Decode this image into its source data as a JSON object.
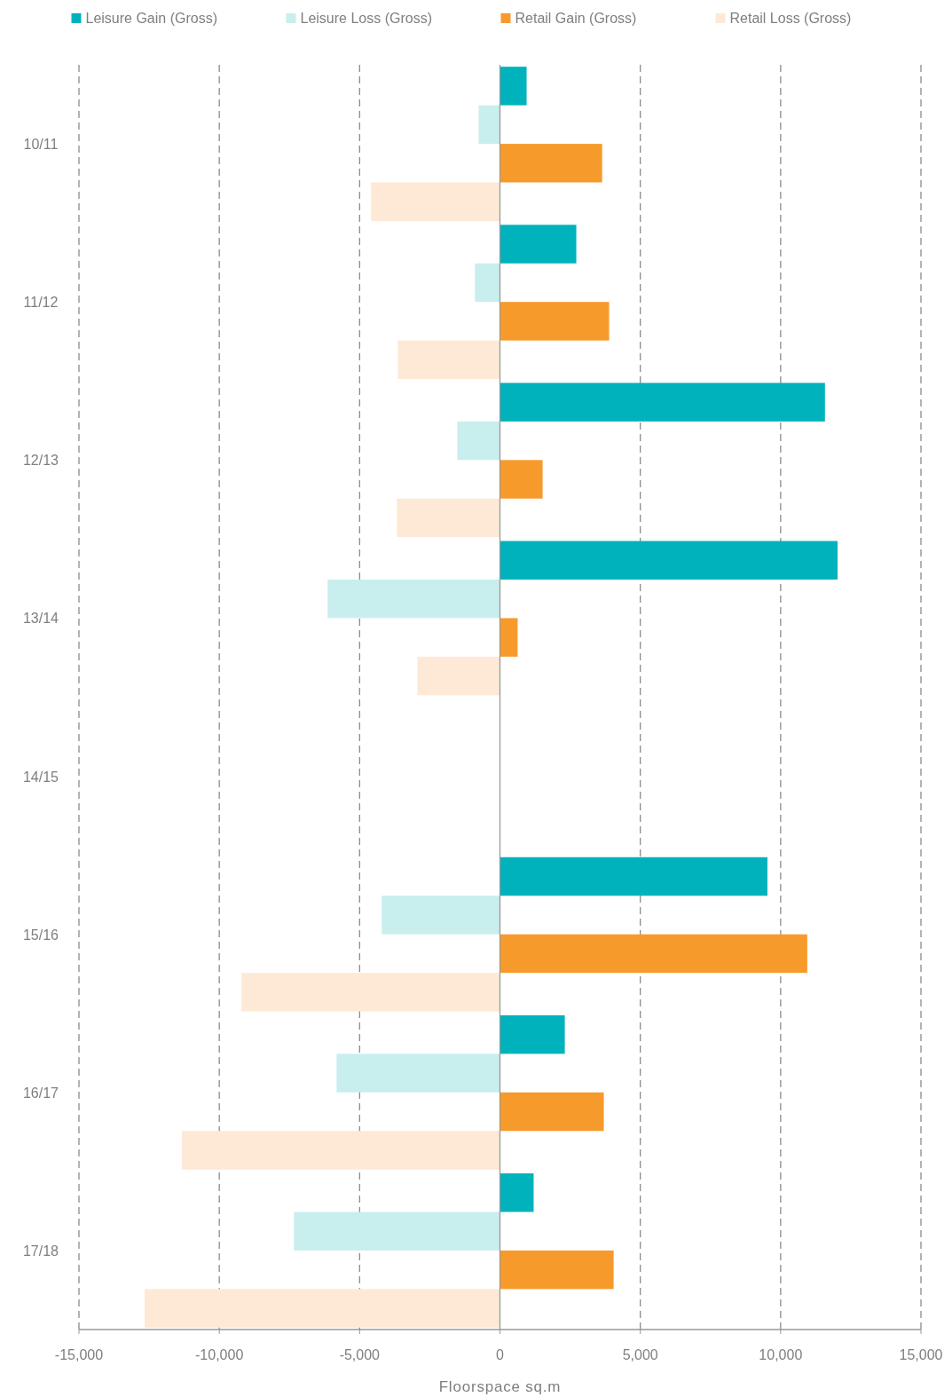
{
  "chart_data": {
    "type": "bar",
    "orientation": "horizontal",
    "xlabel": "Floorspace sq.m",
    "categories": [
      "10/11",
      "11/12",
      "12/13",
      "13/14",
      "14/15",
      "15/16",
      "16/17",
      "17/18"
    ],
    "series": [
      {
        "name": "Leisure Gain (Gross)",
        "color": "#00b2bc",
        "values": [
          950,
          2720,
          11580,
          12030,
          null,
          9530,
          2310,
          1200
        ]
      },
      {
        "name": "Leisure Loss (Gross)",
        "color": "#c9eeee",
        "values": [
          -760,
          -890,
          -1520,
          -6140,
          null,
          -4210,
          -5820,
          -7340
        ]
      },
      {
        "name": "Retail Gain (Gross)",
        "color": "#f79a2c",
        "values": [
          3640,
          3890,
          1520,
          630,
          null,
          10950,
          3700,
          4050
        ]
      },
      {
        "name": "Retail Loss (Gross)",
        "color": "#fde9d5",
        "values": [
          -4590,
          -3640,
          -3670,
          -2940,
          null,
          -9210,
          -11330,
          -12660
        ]
      }
    ],
    "xlim": [
      -15000,
      15000
    ],
    "xticks": [
      {
        "value": -15000,
        "label": "-15,000"
      },
      {
        "value": -10000,
        "label": "-10,000"
      },
      {
        "value": -5000,
        "label": "-5,000"
      },
      0,
      {
        "value": 5000,
        "label": "5,000"
      },
      {
        "value": 10000,
        "label": "10,000"
      },
      {
        "value": 15000,
        "label": "15,000"
      }
    ],
    "grid": "x",
    "legend": "top"
  }
}
